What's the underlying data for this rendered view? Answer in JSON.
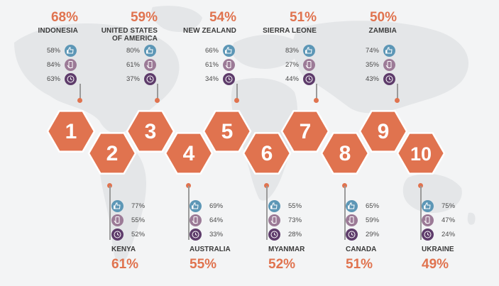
{
  "colors": {
    "accent": "#e0734f",
    "hex_fill": "#e0734f",
    "hex_stroke": "#c45a38",
    "icon_blue": "#5d97b6",
    "icon_mauve": "#9c7b97",
    "icon_plum": "#5e3c6b",
    "text": "#3a3a3a"
  },
  "icons": [
    "thumbs-up-icon",
    "phone-hand-icon",
    "clock-icon"
  ],
  "top_countries": [
    {
      "rank": "1",
      "name": "INDONESIA",
      "overall": "68%",
      "stats": [
        "58%",
        "84%",
        "63%"
      ]
    },
    {
      "rank": "3",
      "name": "UNITED STATES OF AMERICA",
      "overall": "59%",
      "stats": [
        "80%",
        "61%",
        "37%"
      ]
    },
    {
      "rank": "5",
      "name": "NEW ZEALAND",
      "overall": "54%",
      "stats": [
        "66%",
        "61%",
        "34%"
      ]
    },
    {
      "rank": "7",
      "name": "SIERRA LEONE",
      "overall": "51%",
      "stats": [
        "83%",
        "27%",
        "44%"
      ]
    },
    {
      "rank": "9",
      "name": "ZAMBIA",
      "overall": "50%",
      "stats": [
        "74%",
        "35%",
        "43%"
      ]
    }
  ],
  "bottom_countries": [
    {
      "rank": "2",
      "name": "KENYA",
      "overall": "61%",
      "stats": [
        "77%",
        "55%",
        "52%"
      ]
    },
    {
      "rank": "4",
      "name": "AUSTRALIA",
      "overall": "55%",
      "stats": [
        "69%",
        "64%",
        "33%"
      ]
    },
    {
      "rank": "6",
      "name": "MYANMAR",
      "overall": "52%",
      "stats": [
        "55%",
        "73%",
        "28%"
      ]
    },
    {
      "rank": "8",
      "name": "CANADA",
      "overall": "51%",
      "stats": [
        "65%",
        "59%",
        "29%"
      ]
    },
    {
      "rank": "10",
      "name": "UKRAINE",
      "overall": "49%",
      "stats": [
        "75%",
        "47%",
        "24%"
      ]
    }
  ]
}
